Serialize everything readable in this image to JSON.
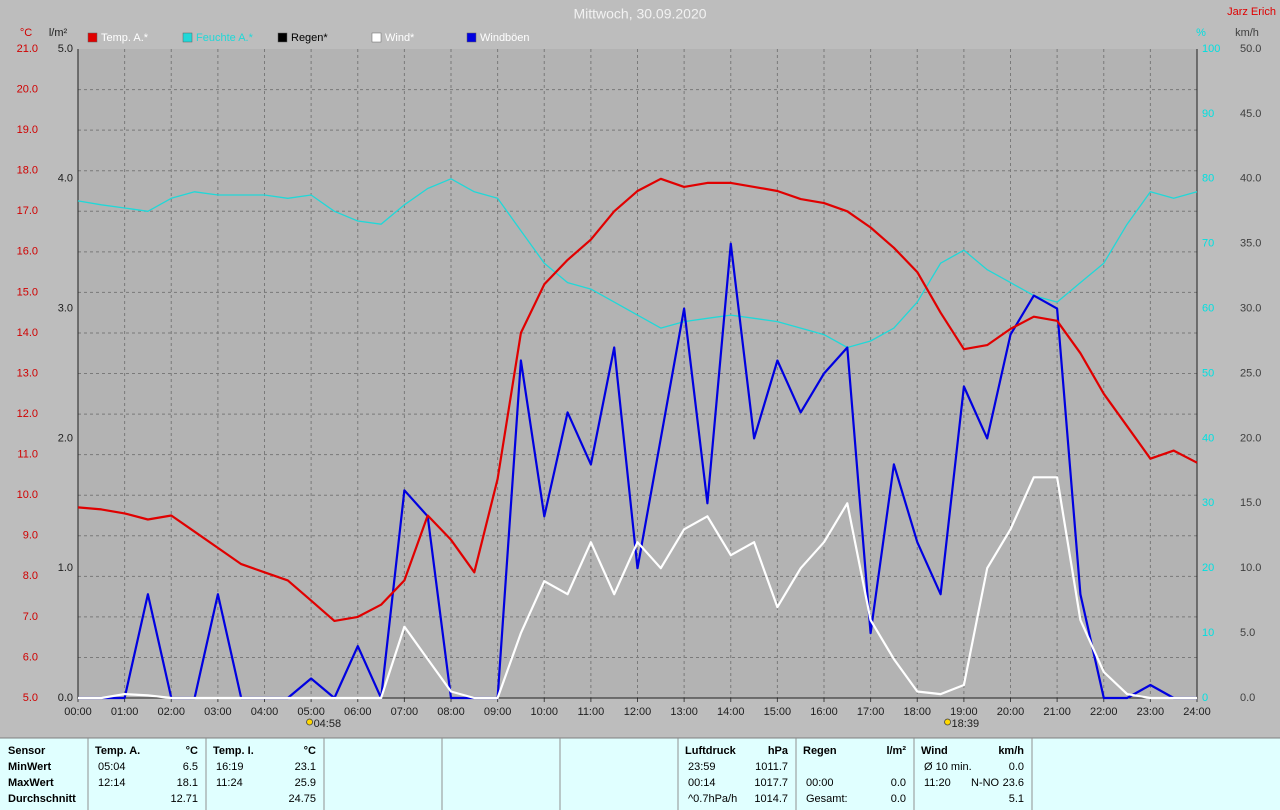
{
  "chart_data": {
    "type": "line",
    "title": "Mittwoch, 30.09.2020",
    "x": [
      0,
      0.5,
      1,
      1.5,
      2,
      2.5,
      3,
      3.5,
      4,
      4.5,
      5,
      5.5,
      6,
      6.5,
      7,
      7.5,
      8,
      8.5,
      9,
      9.5,
      10,
      10.5,
      11,
      11.5,
      12,
      12.5,
      13,
      13.5,
      14,
      14.5,
      15,
      15.5,
      16,
      16.5,
      17,
      17.5,
      18,
      18.5,
      19,
      19.5,
      20,
      20.5,
      21,
      21.5,
      22,
      22.5,
      23,
      23.5,
      24
    ],
    "xlim": [
      0,
      24
    ],
    "xticks": [
      {
        "value": 0,
        "label": "00:00"
      },
      {
        "value": 1,
        "label": "01:00"
      },
      {
        "value": 2,
        "label": "02:00"
      },
      {
        "value": 3,
        "label": "03:00"
      },
      {
        "value": 4,
        "label": "04:00"
      },
      {
        "value": 5,
        "label": "05:00"
      },
      {
        "value": 6,
        "label": "06:00"
      },
      {
        "value": 7,
        "label": "07:00"
      },
      {
        "value": 8,
        "label": "08:00"
      },
      {
        "value": 9,
        "label": "09:00"
      },
      {
        "value": 10,
        "label": "10:00"
      },
      {
        "value": 11,
        "label": "11:00"
      },
      {
        "value": 12,
        "label": "12:00"
      },
      {
        "value": 13,
        "label": "13:00"
      },
      {
        "value": 14,
        "label": "14:00"
      },
      {
        "value": 15,
        "label": "15:00"
      },
      {
        "value": 16,
        "label": "16:00"
      },
      {
        "value": 17,
        "label": "17:00"
      },
      {
        "value": 18,
        "label": "18:00"
      },
      {
        "value": 19,
        "label": "19:00"
      },
      {
        "value": 20,
        "label": "20:00"
      },
      {
        "value": 21,
        "label": "21:00"
      },
      {
        "value": 22,
        "label": "22:00"
      },
      {
        "value": 23,
        "label": "23:00"
      },
      {
        "value": 24,
        "label": "24:00"
      }
    ],
    "grid": true,
    "axes": [
      {
        "unit": "°C",
        "color": "#d00000",
        "lim": [
          5,
          21
        ],
        "ticks": [
          {
            "value": 5,
            "label": "5.0"
          },
          {
            "value": 6,
            "label": "6.0"
          },
          {
            "value": 7,
            "label": "7.0"
          },
          {
            "value": 8,
            "label": "8.0"
          },
          {
            "value": 9,
            "label": "9.0"
          },
          {
            "value": 10,
            "label": "10.0"
          },
          {
            "value": 11,
            "label": "11.0"
          },
          {
            "value": 12,
            "label": "12.0"
          },
          {
            "value": 13,
            "label": "13.0"
          },
          {
            "value": 14,
            "label": "14.0"
          },
          {
            "value": 15,
            "label": "15.0"
          },
          {
            "value": 16,
            "label": "16.0"
          },
          {
            "value": 17,
            "label": "17.0"
          },
          {
            "value": 18,
            "label": "18.0"
          },
          {
            "value": 19,
            "label": "19.0"
          },
          {
            "value": 20,
            "label": "20.0"
          },
          {
            "value": 21,
            "label": "21.0"
          }
        ]
      },
      {
        "unit": "l/m²",
        "color": "#202020",
        "lim": [
          0,
          5
        ],
        "ticks": [
          {
            "value": 0,
            "label": "0.0"
          },
          {
            "value": 1,
            "label": "1.0"
          },
          {
            "value": 2,
            "label": "2.0"
          },
          {
            "value": 3,
            "label": "3.0"
          },
          {
            "value": 4,
            "label": "4.0"
          },
          {
            "value": 5,
            "label": "5.0"
          }
        ]
      },
      {
        "unit": "%",
        "color": "#00e0e0",
        "lim": [
          0,
          100
        ],
        "ticks": [
          0,
          10,
          20,
          30,
          40,
          50,
          60,
          70,
          80,
          90,
          100
        ]
      },
      {
        "unit": "km/h",
        "color": "#404040",
        "lim": [
          0,
          50
        ],
        "ticks": [
          {
            "value": 0,
            "label": "0.0"
          },
          {
            "value": 5,
            "label": "5.0"
          },
          {
            "value": 10,
            "label": "10.0"
          },
          {
            "value": 15,
            "label": "15.0"
          },
          {
            "value": 20,
            "label": "20.0"
          },
          {
            "value": 25,
            "label": "25.0"
          },
          {
            "value": 30,
            "label": "30.0"
          },
          {
            "value": 35,
            "label": "35.0"
          },
          {
            "value": 40,
            "label": "40.0"
          },
          {
            "value": 45,
            "label": "45.0"
          },
          {
            "value": 50,
            "label": "50.0"
          }
        ]
      }
    ],
    "series": [
      {
        "name": "Temp. A.*",
        "color": "#e00000",
        "axis": 0,
        "values": [
          9.7,
          9.65,
          9.55,
          9.4,
          9.5,
          9.1,
          8.7,
          8.3,
          8.1,
          7.9,
          7.4,
          6.9,
          7.0,
          7.3,
          7.9,
          9.5,
          8.9,
          8.1,
          10.4,
          14.0,
          15.2,
          15.8,
          16.3,
          17.0,
          17.5,
          17.8,
          17.6,
          17.7,
          17.7,
          17.6,
          17.5,
          17.3,
          17.2,
          17.0,
          16.6,
          16.1,
          15.5,
          14.5,
          13.6,
          13.7,
          14.1,
          14.4,
          14.3,
          13.5,
          12.5,
          11.7,
          10.9,
          11.1,
          10.8
        ]
      },
      {
        "name": "Feuchte A.*",
        "color": "#20d8d8",
        "axis": 2,
        "values": [
          76.6,
          76,
          75.5,
          75,
          77,
          78,
          77.5,
          77.5,
          77.5,
          77,
          77.5,
          75,
          73.5,
          73,
          76,
          78.5,
          80,
          78,
          77,
          72,
          67,
          64,
          63,
          61,
          59,
          57,
          58,
          58.5,
          59,
          58.5,
          58,
          57,
          56,
          54,
          55,
          57,
          61,
          67,
          69,
          66,
          64,
          62,
          61,
          64,
          67,
          73,
          78,
          77,
          78
        ]
      },
      {
        "name": "Regen*",
        "color": "#000000",
        "axis": 1
      },
      {
        "name": "Wind*",
        "color": "#ffffff",
        "axis": 3,
        "values": [
          0,
          0,
          0.3,
          0.2,
          0,
          0,
          0,
          0,
          0,
          0,
          0,
          0,
          0,
          0,
          5.5,
          3,
          0.5,
          0,
          0,
          5,
          9,
          8,
          12,
          8,
          12,
          10,
          13,
          14,
          11,
          12,
          7,
          10,
          12,
          15,
          6,
          3,
          0.5,
          0.3,
          1,
          10,
          13,
          17,
          17,
          6,
          2,
          0.3,
          0,
          0,
          0
        ]
      },
      {
        "name": "Windböen",
        "color": "#0000e0",
        "axis": 3,
        "values": [
          0,
          0,
          0,
          8,
          0,
          0,
          8,
          0,
          0,
          0,
          1.5,
          0,
          4,
          0,
          16,
          14,
          0,
          0,
          0,
          26,
          14,
          22,
          18,
          27,
          10,
          20,
          30,
          15,
          35,
          20,
          26,
          22,
          25,
          27,
          5,
          18,
          12,
          8,
          24,
          20,
          28,
          31,
          30,
          8,
          0,
          0,
          1,
          0,
          0
        ]
      }
    ]
  },
  "header": {
    "author": "Jarz Erich"
  },
  "sun": {
    "sunrise": "04:58",
    "sunset": "18:39"
  },
  "table": {
    "row_labels": [
      "Sensor",
      "MinWert",
      "MaxWert",
      "Durchschnitt"
    ],
    "columns": [
      {
        "name": "Temp. A.",
        "unit": "°C",
        "rows": [
          {
            "label": "05:04",
            "value": "6.5"
          },
          {
            "label": "12:14",
            "value": "18.1"
          },
          {
            "value": "12.71"
          }
        ]
      },
      {
        "name": "Temp. I.",
        "unit": "°C",
        "rows": [
          {
            "label": "16:19",
            "value": "23.1"
          },
          {
            "label": "11:24",
            "value": "25.9"
          },
          {
            "value": "24.75"
          }
        ]
      },
      {
        "name": "Luftdruck",
        "unit": "hPa",
        "rows": [
          {
            "label": "23:59",
            "value": "1011.7"
          },
          {
            "label": "00:14",
            "value": "1017.7"
          },
          {
            "label": "^0.7hPa/h",
            "value": "1014.7"
          }
        ]
      },
      {
        "name": "Regen",
        "unit": "l/m²",
        "rows": [
          null,
          {
            "label": "00:00",
            "value": "0.0"
          },
          {
            "label": "Gesamt:",
            "value": "0.0"
          }
        ]
      },
      {
        "name": "Wind",
        "unit": "km/h",
        "rows": [
          {
            "label": "Ø 10 min.",
            "value": "0.0"
          },
          {
            "label": "11:20",
            "extra": "N-NO",
            "value": "23.6"
          },
          {
            "value": "5.1"
          }
        ]
      }
    ]
  }
}
